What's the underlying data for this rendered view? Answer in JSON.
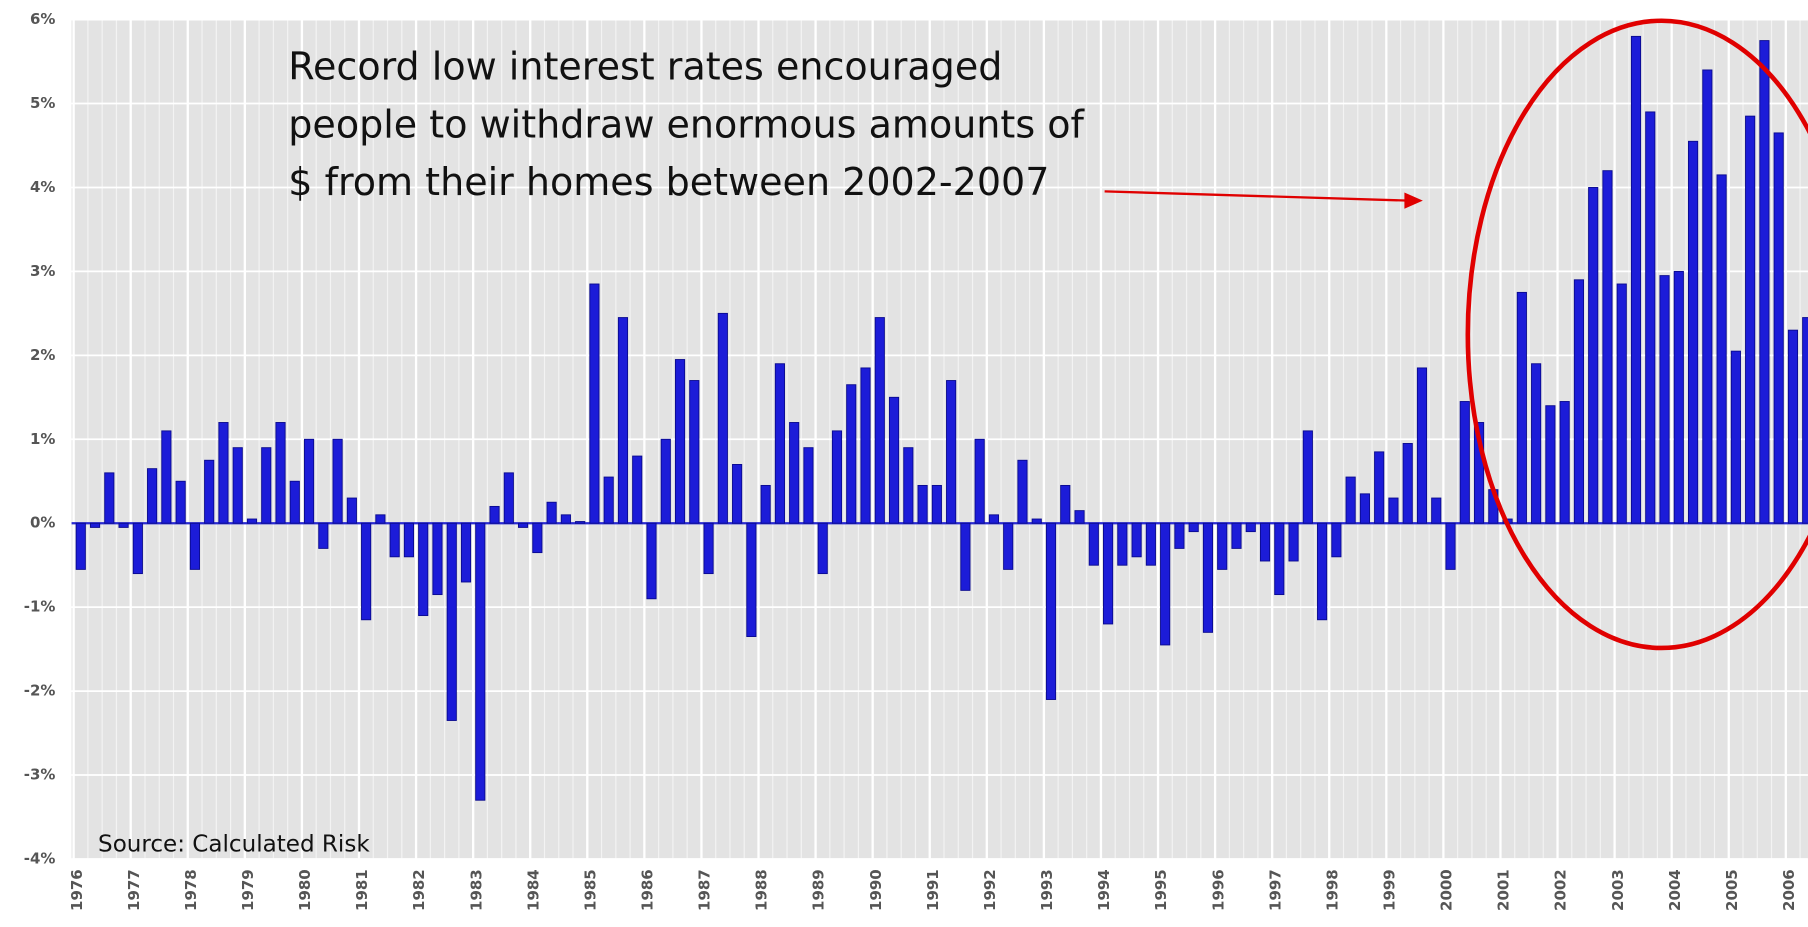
{
  "chart_data": {
    "type": "bar",
    "annotation": [
      "Record low interest rates encouraged",
      "people to withdraw enormous amounts of",
      "$ from their homes between 2002-2007"
    ],
    "source": "Source: Calculated Risk",
    "color": "#1c1cd8",
    "grid": true,
    "categories": [
      "1976",
      null,
      null,
      null,
      "1977",
      null,
      null,
      null,
      "1978",
      null,
      null,
      null,
      "1979",
      null,
      null,
      null,
      "1980",
      null,
      null,
      null,
      "1981",
      null,
      null,
      null,
      "1982",
      null,
      null,
      null,
      "1983",
      null,
      null,
      null,
      "1984",
      null,
      null,
      null,
      "1985",
      null,
      null,
      null,
      "1986",
      null,
      null,
      null,
      "1987",
      null,
      null,
      null,
      "1988",
      null,
      null,
      null,
      "1989",
      null,
      null,
      null,
      "1990",
      null,
      null,
      null,
      "1991",
      null,
      null,
      null,
      "1992",
      null,
      null,
      null,
      "1993",
      null,
      null,
      null,
      "1994",
      null,
      null,
      null,
      "1995",
      null,
      null,
      null,
      "1996",
      null,
      null,
      null,
      "1997",
      null,
      null,
      null,
      "1998",
      null,
      null,
      null,
      "1999",
      null,
      null,
      null,
      "2000",
      null,
      null,
      null,
      "2001",
      null,
      null,
      null,
      "2002",
      null,
      null,
      null,
      "2003",
      null,
      null,
      null,
      "2004",
      null,
      null,
      null,
      "2005",
      null,
      null,
      null,
      "2006",
      null
    ],
    "values": [
      -0.55,
      -0.05,
      0.6,
      -0.05,
      -0.6,
      0.65,
      1.1,
      0.5,
      -0.55,
      0.75,
      1.2,
      0.9,
      0.05,
      0.9,
      1.2,
      0.5,
      1.0,
      -0.3,
      1.0,
      0.3,
      -1.15,
      0.1,
      -0.4,
      -0.4,
      -1.1,
      -0.85,
      -2.35,
      -0.7,
      -3.3,
      0.2,
      0.6,
      -0.05,
      -0.35,
      0.25,
      0.1,
      0.02,
      2.85,
      0.55,
      2.45,
      0.8,
      -0.9,
      1.0,
      1.95,
      1.7,
      -0.6,
      2.5,
      0.7,
      -1.35,
      0.45,
      1.9,
      1.2,
      0.9,
      -0.6,
      1.1,
      1.65,
      1.85,
      2.45,
      1.5,
      0.9,
      0.45,
      0.45,
      1.7,
      -0.8,
      1.0,
      0.1,
      -0.55,
      0.75,
      0.05,
      -2.1,
      0.45,
      0.15,
      -0.5,
      -1.2,
      -0.5,
      -0.4,
      -0.5,
      -1.45,
      -0.3,
      -0.1,
      -1.3,
      -0.55,
      -0.3,
      -0.1,
      -0.45,
      -0.85,
      -0.45,
      1.1,
      -1.15,
      -0.4,
      0.55,
      0.35,
      0.85,
      0.3,
      0.95,
      1.85,
      0.3,
      -0.55,
      1.45,
      1.2,
      0.4,
      0.05,
      2.75,
      1.9,
      1.4,
      1.45,
      2.9,
      4.0,
      4.2,
      2.85,
      5.8,
      4.9,
      2.95,
      3.0,
      4.55,
      5.4,
      4.15,
      2.05,
      4.85,
      5.75,
      4.65,
      2.3,
      2.45
    ],
    "ylim": [
      -4,
      6
    ],
    "yticks": [
      {
        "value": -4,
        "label": "-4%"
      },
      {
        "value": -3,
        "label": "-3%"
      },
      {
        "value": -2,
        "label": "-2%"
      },
      {
        "value": -1,
        "label": "-1%"
      },
      {
        "value": 0,
        "label": "0%"
      },
      {
        "value": 1,
        "label": "1%"
      },
      {
        "value": 2,
        "label": "2%"
      },
      {
        "value": 3,
        "label": "3%"
      },
      {
        "value": 4,
        "label": "4%"
      },
      {
        "value": 5,
        "label": "5%"
      },
      {
        "value": 6,
        "label": "6%"
      }
    ]
  }
}
